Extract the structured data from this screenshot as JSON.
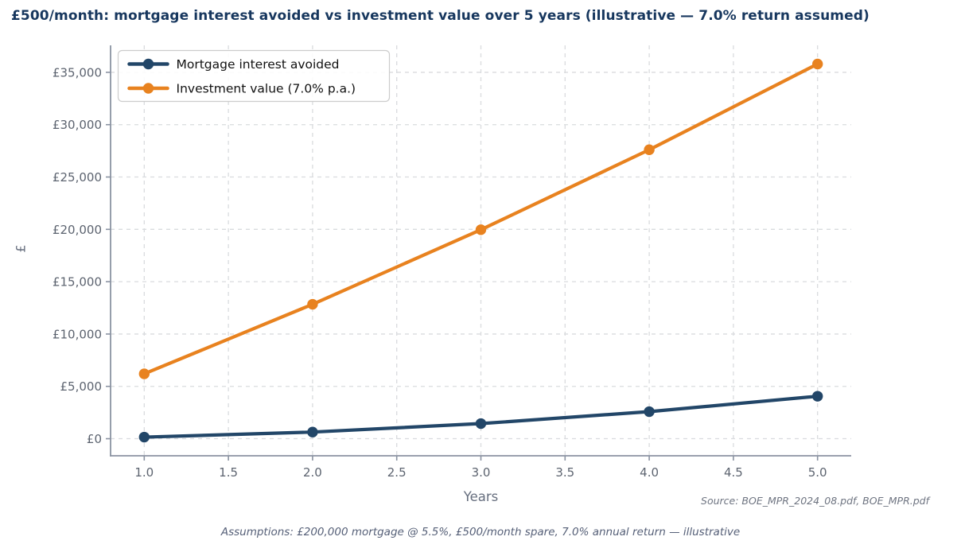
{
  "page": {
    "source_note": "Source: BOE_MPR_2024_08.pdf, BOE_MPR.pdf",
    "assumptions_note": "Assumptions: £200,000 mortgage @ 5.5%, £500/month spare, 7.0% annual return — illustrative"
  },
  "chart_data": {
    "type": "line",
    "title": "£500/month: mortgage interest avoided vs investment value over 5 years (illustrative — 7.0% return assumed)",
    "xlabel": "Years",
    "ylabel": "£",
    "x": [
      1,
      2,
      3,
      4,
      5
    ],
    "series": [
      {
        "name": "Mortgage interest avoided",
        "color": "#224668",
        "values": [
          151,
          633,
          1444,
          2585,
          4056
        ]
      },
      {
        "name": "Investment value (7.0% p.a.)",
        "color": "#e8821f",
        "values": [
          6196,
          12840,
          19964,
          27604,
          35796
        ]
      }
    ],
    "x_ticks": [
      1,
      1.5,
      2,
      2.5,
      3,
      3.5,
      4,
      4.5,
      5
    ],
    "x_tick_labels": [
      "1.0",
      "1.5",
      "2.0",
      "2.5",
      "3.0",
      "3.5",
      "4.0",
      "4.5",
      "5.0"
    ],
    "y_ticks": [
      0,
      5000,
      10000,
      15000,
      20000,
      25000,
      30000,
      35000
    ],
    "y_tick_labels": [
      "£0",
      "£5,000",
      "£10,000",
      "£15,000",
      "£20,000",
      "£25,000",
      "£30,000",
      "£35,000"
    ],
    "xlim": [
      0.8,
      5.2
    ],
    "ylim": [
      -1631,
      37578
    ],
    "grid": true,
    "legend_position": "upper left",
    "marker": "circle"
  },
  "colors": {
    "title": "#17375e",
    "tick_label": "#5d6470",
    "axis_title": "#666e7e",
    "spine": "#8b93a2",
    "grid": "#d9dbde",
    "legend_border": "#cccccc",
    "legend_text": "#111111",
    "background": "#ffffff"
  }
}
